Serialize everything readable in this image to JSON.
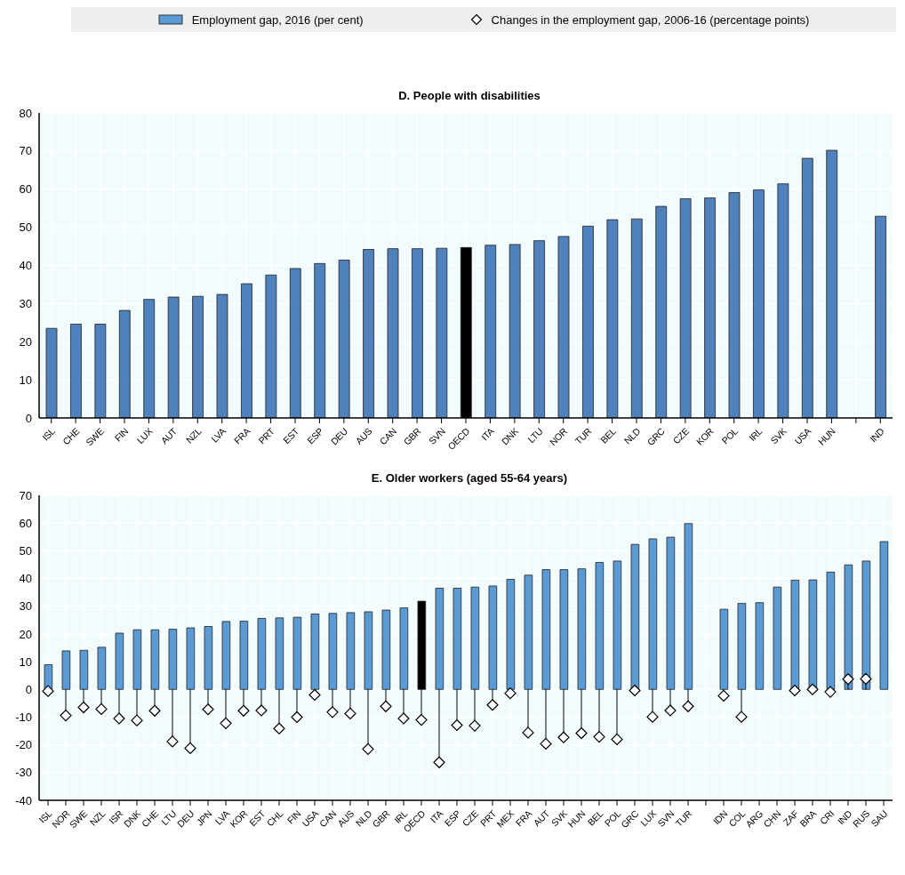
{
  "chart_data": [
    {
      "type": "bar",
      "title": "D. People with disabilities",
      "categories": [
        "ISL",
        "CHE",
        "SWE",
        "FIN",
        "LUX",
        "AUT",
        "NZL",
        "LVA",
        "FRA",
        "PRT",
        "EST",
        "ESP",
        "DEU",
        "AUS",
        "CAN",
        "GBR",
        "SVN",
        "OECD",
        "ITA",
        "DNK",
        "LTU",
        "NOR",
        "TUR",
        "BEL",
        "NLD",
        "GRC",
        "CZE",
        "KOR",
        "POL",
        "IRL",
        "SVK",
        "USA",
        "HUN",
        null,
        "IND"
      ],
      "series": [
        {
          "type": "bar",
          "color": "#4f81bd",
          "colors": [
            "#4f81bd",
            "#4f81bd",
            "#4f81bd",
            "#4f81bd",
            "#4f81bd",
            "#4f81bd",
            "#4f81bd",
            "#4f81bd",
            "#4f81bd",
            "#4f81bd",
            "#4f81bd",
            "#4f81bd",
            "#4f81bd",
            "#4f81bd",
            "#4f81bd",
            "#4f81bd",
            "#4f81bd",
            "#000000",
            "#4f81bd",
            "#4f81bd",
            "#4f81bd",
            "#4f81bd",
            "#4f81bd",
            "#4f81bd",
            "#4f81bd",
            "#4f81bd",
            "#4f81bd",
            "#4f81bd",
            "#4f81bd",
            "#4f81bd",
            "#4f81bd",
            "#4f81bd",
            "#4f81bd",
            "#4f81bd",
            "#4f81bd"
          ],
          "values": [
            23.5,
            24.6,
            24.6,
            28.2,
            31.1,
            31.7,
            31.9,
            32.4,
            35.2,
            37.5,
            39.2,
            40.5,
            41.4,
            44.2,
            44.4,
            44.4,
            44.5,
            44.7,
            45.3,
            45.5,
            46.5,
            47.6,
            50.3,
            52.0,
            52.2,
            55.5,
            57.5,
            57.7,
            59.1,
            59.8,
            61.4,
            68.1,
            70.2,
            null,
            52.9
          ]
        }
      ],
      "ylim": [
        0,
        80
      ],
      "yticks": [
        0,
        10,
        20,
        30,
        40,
        50,
        60,
        70,
        80
      ],
      "grid": true
    },
    {
      "type": "bar",
      "title": "E. Older workers (aged 55-64 years)",
      "categories": [
        "ISL",
        "NOR",
        "SWE",
        "NZL",
        "ISR",
        "DNK",
        "CHE",
        "LTU",
        "DEU",
        "JPN",
        "LVA",
        "KOR",
        "EST",
        "CHL",
        "FIN",
        "USA",
        "CAN",
        "AUS",
        "NLD",
        "GBR",
        "IRL",
        "OECD",
        "ITA",
        "ESP",
        "CZE",
        "PRT",
        "MEX",
        "FRA",
        "AUT",
        "SVK",
        "HUN",
        "BEL",
        "POL",
        "GRC",
        "LUX",
        "SVN",
        "TUR",
        null,
        "IDN",
        "COL",
        "ARG",
        "CHN",
        "ZAF",
        "BRA",
        "CRI",
        "IND",
        "RUS",
        "SAU"
      ],
      "series": [
        {
          "type": "bar",
          "name": "Employment gap, 2016 (per cent)",
          "color": "#5b9bd5",
          "colors": [
            "#5b9bd5",
            "#5b9bd5",
            "#5b9bd5",
            "#5b9bd5",
            "#5b9bd5",
            "#5b9bd5",
            "#5b9bd5",
            "#5b9bd5",
            "#5b9bd5",
            "#5b9bd5",
            "#5b9bd5",
            "#5b9bd5",
            "#5b9bd5",
            "#5b9bd5",
            "#5b9bd5",
            "#5b9bd5",
            "#5b9bd5",
            "#5b9bd5",
            "#5b9bd5",
            "#5b9bd5",
            "#5b9bd5",
            "#000000",
            "#5b9bd5",
            "#5b9bd5",
            "#5b9bd5",
            "#5b9bd5",
            "#5b9bd5",
            "#5b9bd5",
            "#5b9bd5",
            "#5b9bd5",
            "#5b9bd5",
            "#5b9bd5",
            "#5b9bd5",
            "#5b9bd5",
            "#5b9bd5",
            "#5b9bd5",
            "#5b9bd5",
            "#5b9bd5",
            "#5b9bd5",
            "#5b9bd5",
            "#5b9bd5",
            "#5b9bd5",
            "#5b9bd5",
            "#5b9bd5",
            "#5b9bd5",
            "#5b9bd5",
            "#5b9bd5",
            "#5b9bd5"
          ],
          "values": [
            8.9,
            13.9,
            14.1,
            15.2,
            20.3,
            21.5,
            21.5,
            21.7,
            22.2,
            22.7,
            24.5,
            24.6,
            25.6,
            25.8,
            26.0,
            27.2,
            27.4,
            27.7,
            28.0,
            28.6,
            29.4,
            31.8,
            36.5,
            36.5,
            36.9,
            37.3,
            39.7,
            41.2,
            43.2,
            43.2,
            43.5,
            45.8,
            46.3,
            52.3,
            54.3,
            54.9,
            59.8,
            null,
            28.9,
            31.0,
            31.3,
            36.9,
            39.4,
            39.5,
            42.3,
            44.9,
            46.3,
            53.3
          ]
        },
        {
          "type": "lollipop",
          "name": "Changes in the employment gap, 2006-16 (percentage points)",
          "color": "#000000",
          "marker": "diamond",
          "values": [
            -0.6,
            -9.4,
            -6.5,
            -7.1,
            -10.5,
            -11.2,
            -7.7,
            -18.8,
            -21.2,
            -7.2,
            -12.2,
            -7.7,
            -7.6,
            -14.1,
            -10.0,
            -2.0,
            -8.2,
            -8.7,
            -21.5,
            -6.1,
            -10.5,
            -11.0,
            -26.3,
            -12.9,
            -13.1,
            -5.6,
            -1.4,
            -15.6,
            -19.6,
            -17.3,
            -15.8,
            -17.1,
            -18.0,
            -0.4,
            -9.9,
            -7.6,
            -6.1,
            null,
            -2.3,
            -9.9,
            null,
            null,
            -0.4,
            0.0,
            -0.9,
            3.7,
            3.8,
            null
          ]
        }
      ],
      "ylim": [
        -40,
        70
      ],
      "yticks": [
        -40,
        -30,
        -20,
        -10,
        0,
        10,
        20,
        30,
        40,
        50,
        60,
        70
      ],
      "grid": true,
      "legend": "top"
    }
  ]
}
